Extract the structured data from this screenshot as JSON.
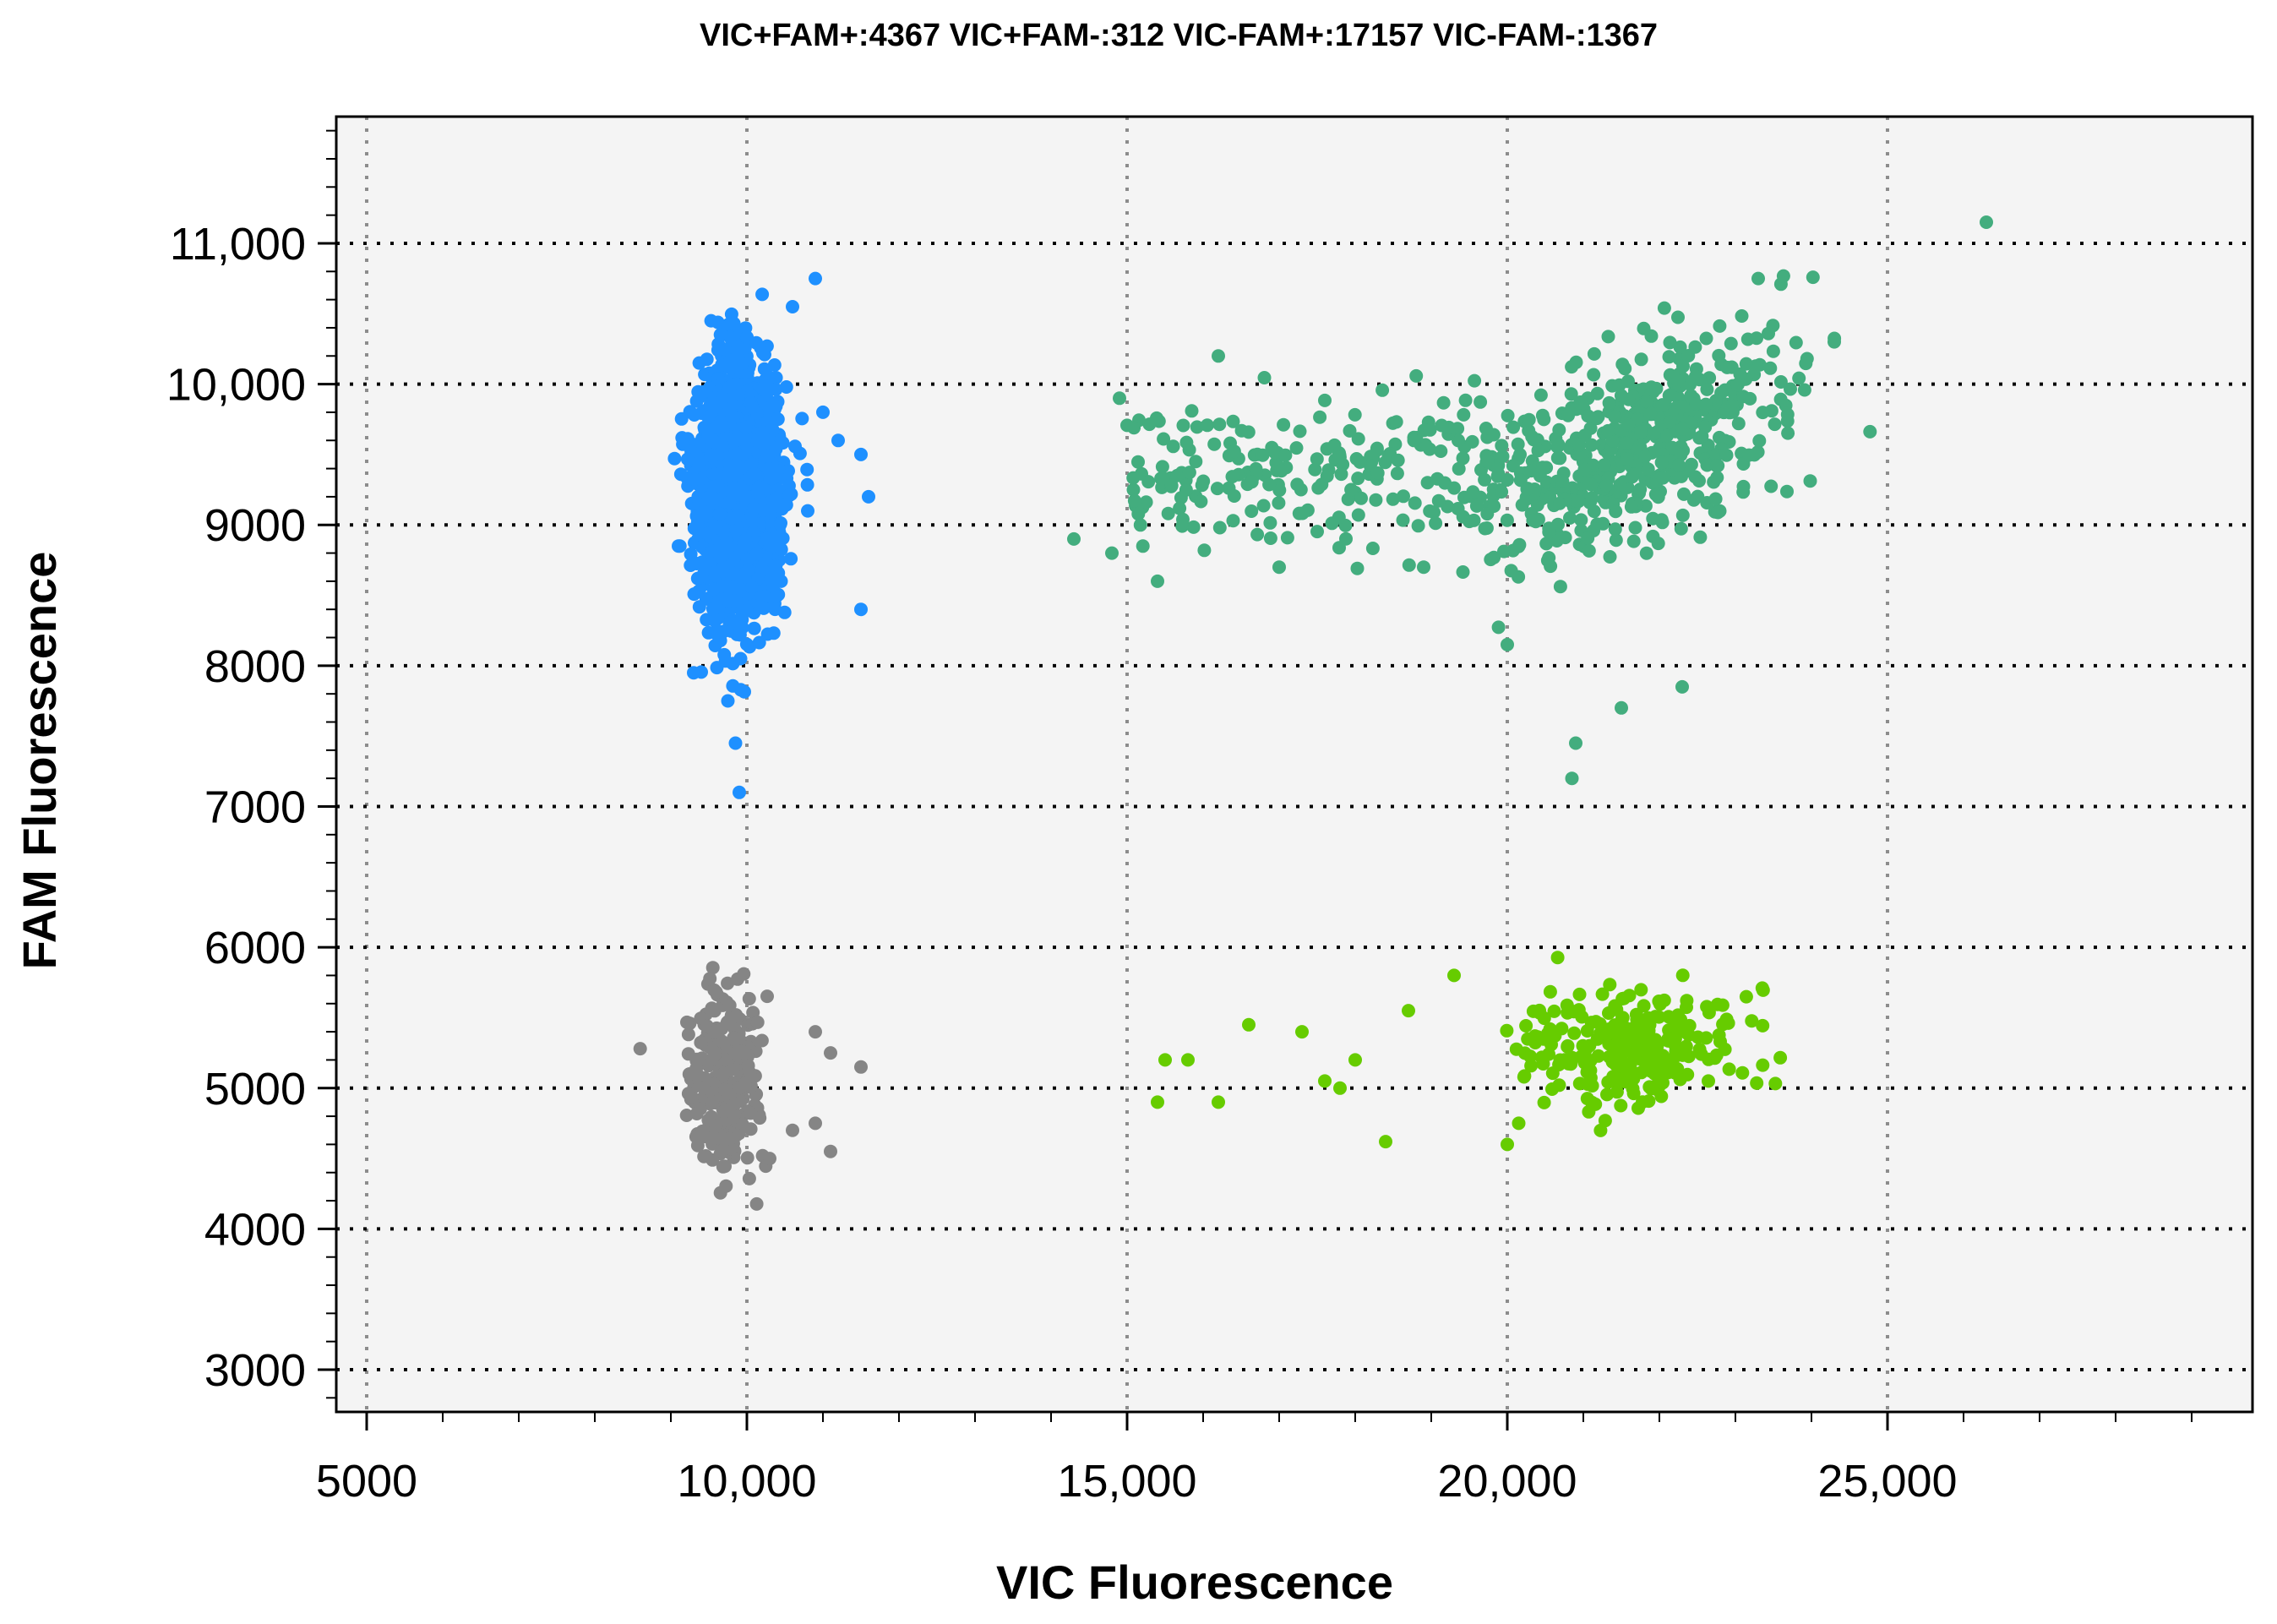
{
  "chart_data": {
    "type": "scatter",
    "title": "VIC+FAM+:4367 VIC+FAM-:312 VIC-FAM+:17157 VIC-FAM-:1367",
    "xlabel": "VIC Fluorescence",
    "ylabel": "FAM Fluorescence",
    "xlim": [
      4600,
      29800
    ],
    "ylim": [
      2700,
      11900
    ],
    "x_ticks": [
      5000,
      10000,
      15000,
      20000,
      25000
    ],
    "x_tick_labels": [
      "5000",
      "10,000",
      "15,000",
      "20,000",
      "25,000"
    ],
    "y_ticks": [
      3000,
      4000,
      5000,
      6000,
      7000,
      8000,
      9000,
      10000,
      11000
    ],
    "y_tick_labels": [
      "3000",
      "4000",
      "5000",
      "6000",
      "7000",
      "8000",
      "9000",
      "10,000",
      "11,000"
    ],
    "grid": true,
    "plot_background": "#f4f4f4",
    "series": [
      {
        "cluster": "VIC-FAM+",
        "color": "#1e90ff",
        "count": 17157,
        "center": [
          9900,
          9250
        ],
        "spread": [
          250,
          420
        ],
        "outliers": [
          [
            9750,
            7750
          ],
          [
            9850,
            7450
          ],
          [
            9900,
            7100
          ],
          [
            10900,
            10750
          ],
          [
            10600,
            10550
          ],
          [
            11500,
            8400
          ],
          [
            11600,
            9200
          ],
          [
            11500,
            9500
          ],
          [
            11000,
            9800
          ],
          [
            10800,
            9100
          ],
          [
            9300,
            7950
          ],
          [
            9100,
            8850
          ],
          [
            11200,
            9600
          ],
          [
            10450,
            8600
          ]
        ]
      },
      {
        "cluster": "VIC+FAM+",
        "color": "#43ad7e",
        "count": 4367,
        "center": [
          21900,
          9600
        ],
        "spread": [
          1100,
          380
        ],
        "outliers": [
          [
            26300,
            11150
          ],
          [
            23300,
            10750
          ],
          [
            20900,
            7450
          ],
          [
            20850,
            7200
          ],
          [
            21500,
            7700
          ],
          [
            22300,
            7850
          ],
          [
            20000,
            8150
          ],
          [
            14300,
            8900
          ],
          [
            15400,
            8600
          ],
          [
            16200,
            10200
          ],
          [
            14900,
            9900
          ],
          [
            18900,
            8700
          ],
          [
            24300,
            10300
          ],
          [
            14800,
            8800
          ],
          [
            17000,
            8700
          ]
        ]
      },
      {
        "cluster": "VIC-FAM-",
        "color": "#858585",
        "count": 1367,
        "center": [
          9700,
          5050
        ],
        "spread": [
          230,
          300
        ],
        "outliers": [
          [
            11100,
            4550
          ],
          [
            11500,
            5150
          ],
          [
            11100,
            5250
          ],
          [
            10900,
            5400
          ],
          [
            10300,
            4500
          ],
          [
            10600,
            4700
          ],
          [
            10900,
            4750
          ]
        ]
      },
      {
        "cluster": "VIC+FAM-",
        "color": "#66cc00",
        "count": 312,
        "center": [
          21600,
          5300
        ],
        "spread": [
          700,
          200
        ],
        "outliers": [
          [
            15400,
            4900
          ],
          [
            16200,
            4900
          ],
          [
            15500,
            5200
          ],
          [
            15800,
            5200
          ],
          [
            16600,
            5450
          ],
          [
            17300,
            5400
          ],
          [
            17600,
            5050
          ],
          [
            18000,
            5200
          ],
          [
            18400,
            4620
          ],
          [
            18700,
            5550
          ],
          [
            19300,
            5800
          ],
          [
            20000,
            4600
          ],
          [
            20150,
            4750
          ],
          [
            17800,
            5000
          ]
        ]
      }
    ]
  }
}
